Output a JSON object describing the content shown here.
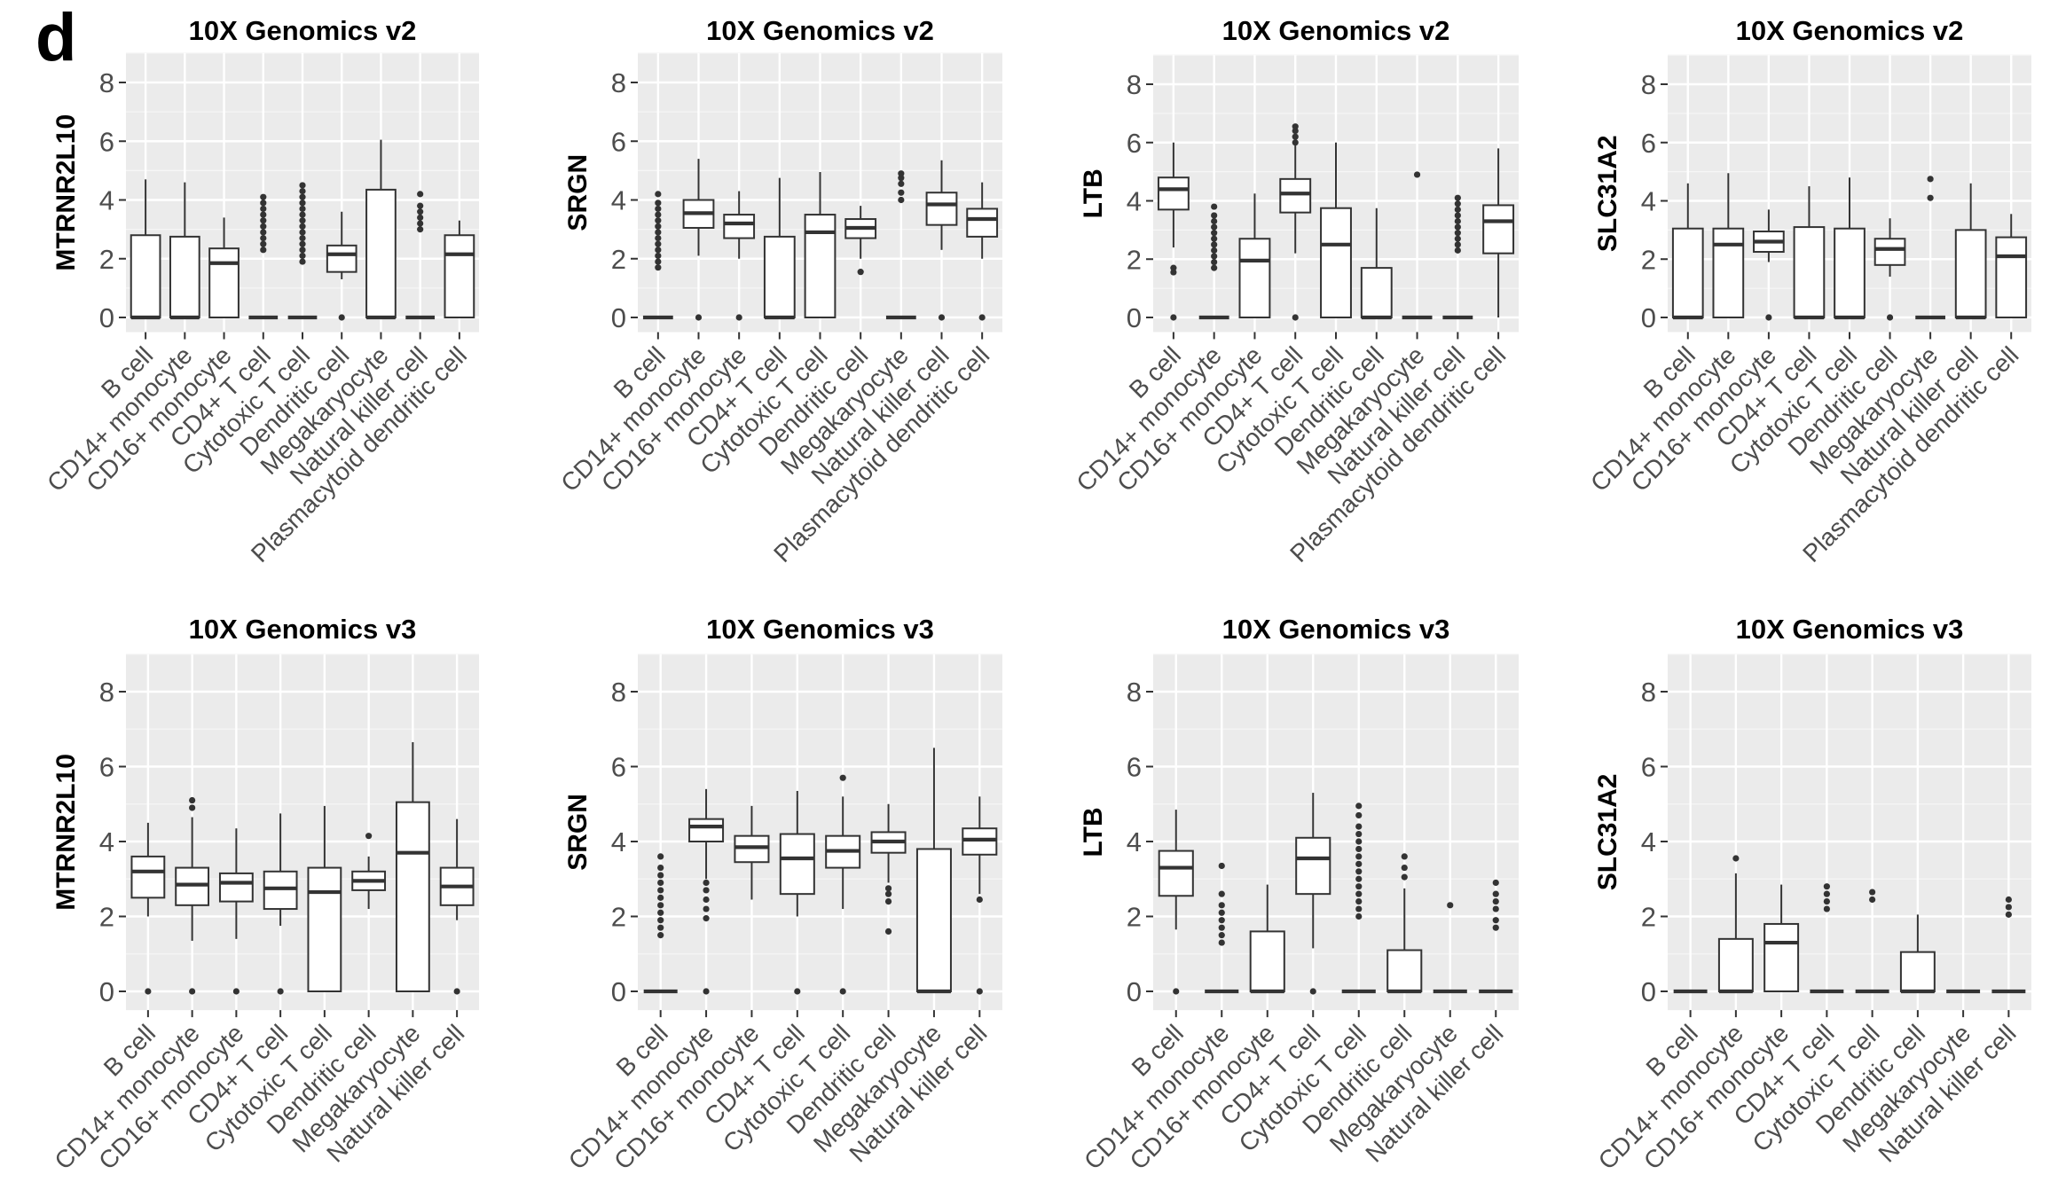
{
  "panel_label": "d",
  "chart_data": [
    {
      "type": "box",
      "title": "10X Genomics v2",
      "ylabel": "MTRNR2L10",
      "ylim": [
        -0.5,
        9
      ],
      "yticks": [
        0,
        2,
        4,
        6,
        8
      ],
      "categories": [
        "B cell",
        "CD14+ monocyte",
        "CD16+ monocyte",
        "CD4+ T cell",
        "Cytotoxic T cell",
        "Dendritic cell",
        "Megakaryocyte",
        "Natural killer cell",
        "Plasmacytoid dendritic cell"
      ],
      "boxes": [
        {
          "min": 0,
          "q1": 0,
          "median": 0,
          "q3": 2.8,
          "max": 4.7,
          "outliers": []
        },
        {
          "min": 0,
          "q1": 0,
          "median": 0,
          "q3": 2.75,
          "max": 4.6,
          "outliers": []
        },
        {
          "min": 0,
          "q1": 0,
          "median": 1.85,
          "q3": 2.35,
          "max": 3.4,
          "outliers": []
        },
        {
          "min": 0,
          "q1": 0,
          "median": 0,
          "q3": 0,
          "max": 0,
          "outliers": [
            2.3,
            2.5,
            2.7,
            2.9,
            3.1,
            3.3,
            3.5,
            3.7,
            3.9,
            4.1
          ]
        },
        {
          "min": 0,
          "q1": 0,
          "median": 0,
          "q3": 0,
          "max": 0,
          "outliers": [
            1.9,
            2.1,
            2.3,
            2.5,
            2.7,
            2.9,
            3.1,
            3.3,
            3.5,
            3.7,
            3.9,
            4.1,
            4.3,
            4.5
          ]
        },
        {
          "min": 1.3,
          "q1": 1.55,
          "median": 2.15,
          "q3": 2.45,
          "max": 3.6,
          "outliers": [
            0
          ]
        },
        {
          "min": 0,
          "q1": 0,
          "median": 0,
          "q3": 4.35,
          "max": 6.05,
          "outliers": []
        },
        {
          "min": 0,
          "q1": 0,
          "median": 0,
          "q3": 0,
          "max": 0,
          "outliers": [
            3.0,
            3.2,
            3.4,
            3.6,
            3.8,
            4.2
          ]
        },
        {
          "min": 0,
          "q1": 0,
          "median": 2.15,
          "q3": 2.8,
          "max": 3.3,
          "outliers": []
        }
      ]
    },
    {
      "type": "box",
      "title": "10X Genomics v2",
      "ylabel": "SRGN",
      "ylim": [
        -0.5,
        9
      ],
      "yticks": [
        0,
        2,
        4,
        6,
        8
      ],
      "categories": [
        "B cell",
        "CD14+ monocyte",
        "CD16+ monocyte",
        "CD4+ T cell",
        "Cytotoxic T cell",
        "Dendritic cell",
        "Megakaryocyte",
        "Natural killer cell",
        "Plasmacytoid dendritic cell"
      ],
      "boxes": [
        {
          "min": 0,
          "q1": 0,
          "median": 0,
          "q3": 0,
          "max": 0,
          "outliers": [
            1.7,
            1.9,
            2.1,
            2.3,
            2.5,
            2.7,
            2.9,
            3.1,
            3.3,
            3.5,
            3.7,
            3.9,
            4.2
          ]
        },
        {
          "min": 2.1,
          "q1": 3.05,
          "median": 3.55,
          "q3": 4.0,
          "max": 5.4,
          "outliers": [
            0
          ]
        },
        {
          "min": 2.0,
          "q1": 2.7,
          "median": 3.2,
          "q3": 3.5,
          "max": 4.3,
          "outliers": [
            0
          ]
        },
        {
          "min": 0,
          "q1": 0,
          "median": 0,
          "q3": 2.75,
          "max": 4.75,
          "outliers": []
        },
        {
          "min": 0,
          "q1": 0,
          "median": 2.9,
          "q3": 3.5,
          "max": 4.95,
          "outliers": []
        },
        {
          "min": 2.0,
          "q1": 2.7,
          "median": 3.05,
          "q3": 3.35,
          "max": 3.8,
          "outliers": [
            1.55
          ]
        },
        {
          "min": 0,
          "q1": 0,
          "median": 0,
          "q3": 0,
          "max": 0,
          "outliers": [
            4.0,
            4.25,
            4.55,
            4.75,
            4.9
          ]
        },
        {
          "min": 2.3,
          "q1": 3.15,
          "median": 3.85,
          "q3": 4.25,
          "max": 5.35,
          "outliers": [
            0
          ]
        },
        {
          "min": 2.0,
          "q1": 2.75,
          "median": 3.35,
          "q3": 3.7,
          "max": 4.6,
          "outliers": [
            0
          ]
        }
      ]
    },
    {
      "type": "box",
      "title": "10X Genomics v2",
      "ylabel": "LTB",
      "ylim": [
        -0.5,
        9
      ],
      "yticks": [
        0,
        2,
        4,
        6,
        8
      ],
      "categories": [
        "B cell",
        "CD14+ monocyte",
        "CD16+ monocyte",
        "CD4+ T cell",
        "Cytotoxic T cell",
        "Dendritic cell",
        "Megakaryocyte",
        "Natural killer cell",
        "Plasmacytoid dendritic cell"
      ],
      "boxes": [
        {
          "min": 2.4,
          "q1": 3.7,
          "median": 4.4,
          "q3": 4.8,
          "max": 6.0,
          "outliers": [
            1.55,
            1.7,
            0
          ]
        },
        {
          "min": 0,
          "q1": 0,
          "median": 0,
          "q3": 0,
          "max": 0,
          "outliers": [
            1.7,
            1.9,
            2.1,
            2.3,
            2.5,
            2.7,
            2.9,
            3.1,
            3.3,
            3.5,
            3.8
          ]
        },
        {
          "min": 0,
          "q1": 0,
          "median": 1.95,
          "q3": 2.7,
          "max": 4.25,
          "outliers": []
        },
        {
          "min": 2.2,
          "q1": 3.6,
          "median": 4.25,
          "q3": 4.75,
          "max": 5.9,
          "outliers": [
            0,
            6.0,
            6.2,
            6.4,
            6.55
          ]
        },
        {
          "min": 0,
          "q1": 0,
          "median": 2.5,
          "q3": 3.75,
          "max": 6.0,
          "outliers": []
        },
        {
          "min": 0,
          "q1": 0,
          "median": 0,
          "q3": 1.7,
          "max": 3.75,
          "outliers": []
        },
        {
          "min": 0,
          "q1": 0,
          "median": 0,
          "q3": 0,
          "max": 0,
          "outliers": [
            4.9
          ]
        },
        {
          "min": 0,
          "q1": 0,
          "median": 0,
          "q3": 0,
          "max": 0,
          "outliers": [
            2.3,
            2.5,
            2.7,
            2.9,
            3.1,
            3.3,
            3.5,
            3.7,
            3.9,
            4.1
          ]
        },
        {
          "min": 0,
          "q1": 2.2,
          "median": 3.3,
          "q3": 3.85,
          "max": 5.8,
          "outliers": []
        }
      ]
    },
    {
      "type": "box",
      "title": "10X Genomics v2",
      "ylabel": "SLC31A2",
      "ylim": [
        -0.5,
        9
      ],
      "yticks": [
        0,
        2,
        4,
        6,
        8
      ],
      "categories": [
        "B cell",
        "CD14+ monocyte",
        "CD16+ monocyte",
        "CD4+ T cell",
        "Cytotoxic T cell",
        "Dendritic cell",
        "Megakaryocyte",
        "Natural killer cell",
        "Plasmacytoid dendritic cell"
      ],
      "boxes": [
        {
          "min": 0,
          "q1": 0,
          "median": 0,
          "q3": 3.05,
          "max": 4.6,
          "outliers": []
        },
        {
          "min": 0,
          "q1": 0,
          "median": 2.5,
          "q3": 3.05,
          "max": 4.95,
          "outliers": []
        },
        {
          "min": 1.9,
          "q1": 2.25,
          "median": 2.6,
          "q3": 2.95,
          "max": 3.7,
          "outliers": [
            0
          ]
        },
        {
          "min": 0,
          "q1": 0,
          "median": 0,
          "q3": 3.1,
          "max": 4.5,
          "outliers": []
        },
        {
          "min": 0,
          "q1": 0,
          "median": 0,
          "q3": 3.05,
          "max": 4.8,
          "outliers": []
        },
        {
          "min": 1.4,
          "q1": 1.8,
          "median": 2.35,
          "q3": 2.7,
          "max": 3.4,
          "outliers": [
            0
          ]
        },
        {
          "min": 0,
          "q1": 0,
          "median": 0,
          "q3": 0,
          "max": 0,
          "outliers": [
            4.1,
            4.75
          ]
        },
        {
          "min": 0,
          "q1": 0,
          "median": 0,
          "q3": 3.0,
          "max": 4.6,
          "outliers": []
        },
        {
          "min": 0,
          "q1": 0,
          "median": 2.1,
          "q3": 2.75,
          "max": 3.55,
          "outliers": []
        }
      ]
    },
    {
      "type": "box",
      "title": "10X Genomics v3",
      "ylabel": "MTRNR2L10",
      "ylim": [
        -0.5,
        9
      ],
      "yticks": [
        0,
        2,
        4,
        6,
        8
      ],
      "categories": [
        "B cell",
        "CD14+ monocyte",
        "CD16+ monocyte",
        "CD4+ T cell",
        "Cytotoxic T cell",
        "Dendritic cell",
        "Megakaryocyte",
        "Natural killer cell"
      ],
      "boxes": [
        {
          "min": 2.0,
          "q1": 2.5,
          "median": 3.2,
          "q3": 3.6,
          "max": 4.5,
          "outliers": [
            0
          ]
        },
        {
          "min": 1.35,
          "q1": 2.3,
          "median": 2.85,
          "q3": 3.3,
          "max": 4.65,
          "outliers": [
            0,
            4.9,
            5.1
          ]
        },
        {
          "min": 1.4,
          "q1": 2.4,
          "median": 2.9,
          "q3": 3.15,
          "max": 4.35,
          "outliers": [
            0
          ]
        },
        {
          "min": 1.75,
          "q1": 2.2,
          "median": 2.75,
          "q3": 3.2,
          "max": 4.75,
          "outliers": [
            0
          ]
        },
        {
          "min": 0,
          "q1": 0,
          "median": 2.65,
          "q3": 3.3,
          "max": 4.95,
          "outliers": []
        },
        {
          "min": 2.2,
          "q1": 2.7,
          "median": 2.95,
          "q3": 3.2,
          "max": 3.6,
          "outliers": [
            4.15
          ]
        },
        {
          "min": 0,
          "q1": 0,
          "median": 3.7,
          "q3": 5.05,
          "max": 6.65,
          "outliers": []
        },
        {
          "min": 1.9,
          "q1": 2.3,
          "median": 2.8,
          "q3": 3.3,
          "max": 4.6,
          "outliers": [
            0
          ]
        }
      ]
    },
    {
      "type": "box",
      "title": "10X Genomics v3",
      "ylabel": "SRGN",
      "ylim": [
        -0.5,
        9
      ],
      "yticks": [
        0,
        2,
        4,
        6,
        8
      ],
      "categories": [
        "B cell",
        "CD14+ monocyte",
        "CD16+ monocyte",
        "CD4+ T cell",
        "Cytotoxic T cell",
        "Dendritic cell",
        "Megakaryocyte",
        "Natural killer cell"
      ],
      "boxes": [
        {
          "min": 0,
          "q1": 0,
          "median": 0,
          "q3": 0,
          "max": 0,
          "outliers": [
            1.5,
            1.7,
            1.9,
            2.1,
            2.3,
            2.5,
            2.7,
            2.9,
            3.1,
            3.3,
            3.6
          ]
        },
        {
          "min": 3.0,
          "q1": 4.0,
          "median": 4.4,
          "q3": 4.6,
          "max": 5.4,
          "outliers": [
            0,
            1.95,
            2.2,
            2.45,
            2.7,
            2.9
          ]
        },
        {
          "min": 2.45,
          "q1": 3.45,
          "median": 3.85,
          "q3": 4.15,
          "max": 4.95,
          "outliers": []
        },
        {
          "min": 2.0,
          "q1": 2.6,
          "median": 3.55,
          "q3": 4.2,
          "max": 5.35,
          "outliers": [
            0
          ]
        },
        {
          "min": 2.2,
          "q1": 3.3,
          "median": 3.75,
          "q3": 4.15,
          "max": 5.2,
          "outliers": [
            0,
            5.7
          ]
        },
        {
          "min": 2.9,
          "q1": 3.7,
          "median": 4.0,
          "q3": 4.25,
          "max": 5.0,
          "outliers": [
            1.6,
            2.4,
            2.6,
            2.75
          ]
        },
        {
          "min": 0,
          "q1": 0,
          "median": 0,
          "q3": 3.8,
          "max": 6.5,
          "outliers": []
        },
        {
          "min": 2.6,
          "q1": 3.65,
          "median": 4.05,
          "q3": 4.35,
          "max": 5.2,
          "outliers": [
            0,
            2.45
          ]
        }
      ]
    },
    {
      "type": "box",
      "title": "10X Genomics v3",
      "ylabel": "LTB",
      "ylim": [
        -0.5,
        9
      ],
      "yticks": [
        0,
        2,
        4,
        6,
        8
      ],
      "categories": [
        "B cell",
        "CD14+ monocyte",
        "CD16+ monocyte",
        "CD4+ T cell",
        "Cytotoxic T cell",
        "Dendritic cell",
        "Megakaryocyte",
        "Natural killer cell"
      ],
      "boxes": [
        {
          "min": 1.65,
          "q1": 2.55,
          "median": 3.3,
          "q3": 3.75,
          "max": 4.85,
          "outliers": [
            0
          ]
        },
        {
          "min": 0,
          "q1": 0,
          "median": 0,
          "q3": 0,
          "max": 0,
          "outliers": [
            1.3,
            1.5,
            1.7,
            1.9,
            2.1,
            2.3,
            2.6,
            3.35
          ]
        },
        {
          "min": 0,
          "q1": 0,
          "median": 0,
          "q3": 1.6,
          "max": 2.85,
          "outliers": []
        },
        {
          "min": 1.15,
          "q1": 2.6,
          "median": 3.55,
          "q3": 4.1,
          "max": 5.3,
          "outliers": [
            0
          ]
        },
        {
          "min": 0,
          "q1": 0,
          "median": 0,
          "q3": 0,
          "max": 0,
          "outliers": [
            2.0,
            2.2,
            2.4,
            2.6,
            2.8,
            3.0,
            3.2,
            3.4,
            3.6,
            3.8,
            4.0,
            4.2,
            4.4,
            4.7,
            4.95
          ]
        },
        {
          "min": 0,
          "q1": 0,
          "median": 0,
          "q3": 1.1,
          "max": 2.75,
          "outliers": [
            3.05,
            3.3,
            3.6
          ]
        },
        {
          "min": 0,
          "q1": 0,
          "median": 0,
          "q3": 0,
          "max": 0,
          "outliers": [
            2.3
          ]
        },
        {
          "min": 0,
          "q1": 0,
          "median": 0,
          "q3": 0,
          "max": 0,
          "outliers": [
            1.7,
            1.9,
            2.2,
            2.4,
            2.6,
            2.9
          ]
        }
      ]
    },
    {
      "type": "box",
      "title": "10X Genomics v3",
      "ylabel": "SLC31A2",
      "ylim": [
        -0.5,
        9
      ],
      "yticks": [
        0,
        2,
        4,
        6,
        8
      ],
      "categories": [
        "B cell",
        "CD14+ monocyte",
        "CD16+ monocyte",
        "CD4+ T cell",
        "Cytotoxic T cell",
        "Dendritic cell",
        "Megakaryocyte",
        "Natural killer cell"
      ],
      "boxes": [
        {
          "min": 0,
          "q1": 0,
          "median": 0,
          "q3": 0,
          "max": 0,
          "outliers": []
        },
        {
          "min": 0,
          "q1": 0,
          "median": 0,
          "q3": 1.4,
          "max": 3.15,
          "outliers": [
            3.55
          ]
        },
        {
          "min": 0,
          "q1": 0,
          "median": 1.3,
          "q3": 1.8,
          "max": 2.85,
          "outliers": []
        },
        {
          "min": 0,
          "q1": 0,
          "median": 0,
          "q3": 0,
          "max": 0,
          "outliers": [
            2.2,
            2.4,
            2.6,
            2.8
          ]
        },
        {
          "min": 0,
          "q1": 0,
          "median": 0,
          "q3": 0,
          "max": 0,
          "outliers": [
            2.45,
            2.65
          ]
        },
        {
          "min": 0,
          "q1": 0,
          "median": 0,
          "q3": 1.05,
          "max": 2.05,
          "outliers": []
        },
        {
          "min": 0,
          "q1": 0,
          "median": 0,
          "q3": 0,
          "max": 0,
          "outliers": []
        },
        {
          "min": 0,
          "q1": 0,
          "median": 0,
          "q3": 0,
          "max": 0,
          "outliers": [
            2.05,
            2.25,
            2.45
          ]
        }
      ]
    }
  ]
}
